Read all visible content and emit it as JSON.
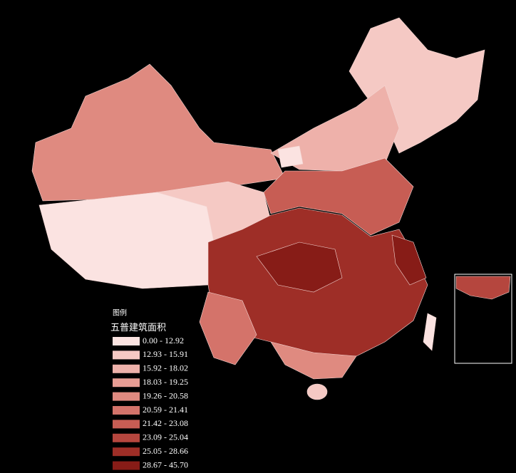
{
  "legend": {
    "heading": "图例",
    "title": "五普建筑面积",
    "classes": [
      {
        "label": "0.00 - 12.92",
        "color": "#fbe3e1"
      },
      {
        "label": "12.93 - 15.91",
        "color": "#f5c9c4"
      },
      {
        "label": "15.92 - 18.02",
        "color": "#eeb1aa"
      },
      {
        "label": "18.03 - 19.25",
        "color": "#e79d94"
      },
      {
        "label": "19.26 - 20.58",
        "color": "#df8a80"
      },
      {
        "label": "20.59 - 21.41",
        "color": "#d4736a"
      },
      {
        "label": "21.42 - 23.08",
        "color": "#c75d54"
      },
      {
        "label": "23.09 - 25.04",
        "color": "#b5463e"
      },
      {
        "label": "25.05 - 28.66",
        "color": "#9e2e27"
      },
      {
        "label": "28.67 - 45.70",
        "color": "#871c17"
      }
    ]
  }
}
